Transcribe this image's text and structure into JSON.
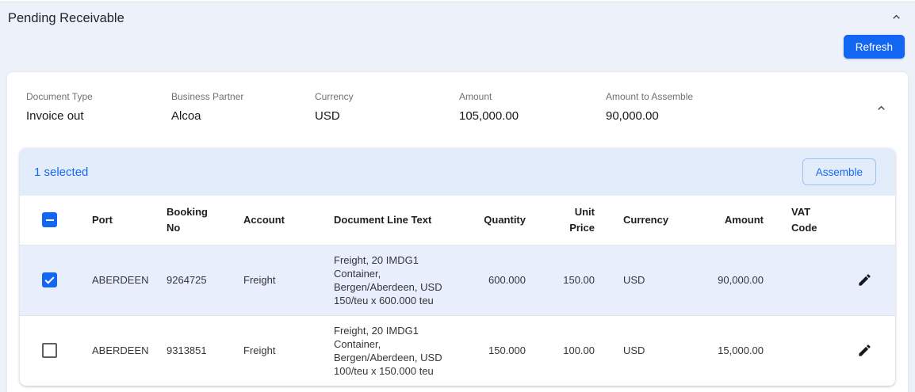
{
  "page": {
    "title": "Pending Receivable",
    "refresh_label": "Refresh"
  },
  "summary": {
    "fields": [
      {
        "label": "Document Type",
        "value": "Invoice out"
      },
      {
        "label": "Business Partner",
        "value": "Alcoa"
      },
      {
        "label": "Currency",
        "value": "USD"
      },
      {
        "label": "Amount",
        "value": "105,000.00"
      },
      {
        "label": "Amount to Assemble",
        "value": "90,000.00"
      }
    ]
  },
  "selection": {
    "selected_text": "1 selected",
    "assemble_label": "Assemble"
  },
  "table": {
    "columns": [
      {
        "key": "checkbox",
        "label": "",
        "align": "left"
      },
      {
        "key": "port",
        "label": "Port",
        "align": "left"
      },
      {
        "key": "booking_no",
        "label": "Booking No",
        "align": "left",
        "wrap": true
      },
      {
        "key": "account",
        "label": "Account",
        "align": "left"
      },
      {
        "key": "document_line_text",
        "label": "Document Line Text",
        "align": "left"
      },
      {
        "key": "quantity",
        "label": "Quantity",
        "align": "right"
      },
      {
        "key": "unit_price",
        "label": "Unit Price",
        "align": "right",
        "wrap": true
      },
      {
        "key": "currency",
        "label": "Currency",
        "align": "left"
      },
      {
        "key": "amount",
        "label": "Amount",
        "align": "right"
      },
      {
        "key": "vat_code",
        "label": "VAT Code",
        "align": "left",
        "wrap": true
      },
      {
        "key": "edit",
        "label": "",
        "align": "center"
      }
    ],
    "rows": [
      {
        "selected": true,
        "port": "ABERDEEN",
        "booking_no": "9264725",
        "account": "Freight",
        "document_line_text": "Freight, 20 IMDG1 Container, Bergen/Aberdeen, USD 150/teu x 600.000 teu",
        "quantity": "600.000",
        "unit_price": "150.00",
        "currency": "USD",
        "amount": "90,000.00",
        "vat_code": ""
      },
      {
        "selected": false,
        "port": "ABERDEEN",
        "booking_no": "9313851",
        "account": "Freight",
        "document_line_text": "Freight, 20 IMDG1 Container, Bergen/Aberdeen, USD 100/teu x 150.000 teu",
        "quantity": "150.000",
        "unit_price": "100.00",
        "currency": "USD",
        "amount": "15,000.00",
        "vat_code": ""
      }
    ]
  },
  "colors": {
    "accent_blue": "#1266f1",
    "link_blue": "#1669f2",
    "selection_bar_bg": "#e3ecfb",
    "selected_row_bg": "#e8eefb",
    "page_bg": "#edf1f9"
  }
}
